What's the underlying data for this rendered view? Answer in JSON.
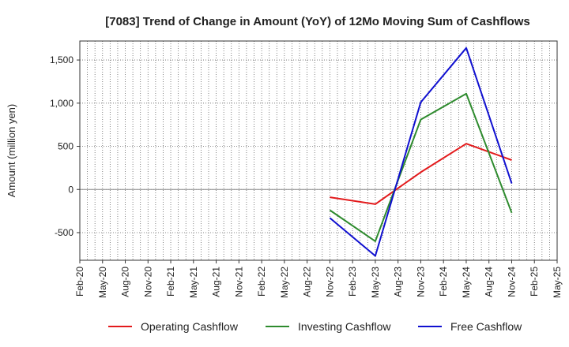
{
  "chart_data": {
    "type": "line",
    "title": "[7083]  Trend of Change in Amount (YoY) of 12Mo Moving Sum of Cashflows",
    "xlabel": "",
    "ylabel": "Amount (million yen)",
    "ylim": [
      -820,
      1720
    ],
    "yticks": [
      -500,
      0,
      500,
      1000,
      1500
    ],
    "ytick_labels": [
      "-500",
      "0",
      "500",
      "1,000",
      "1,500"
    ],
    "categories": [
      "Feb-20",
      "May-20",
      "Aug-20",
      "Nov-20",
      "Feb-21",
      "May-21",
      "Aug-21",
      "Nov-21",
      "Feb-22",
      "May-22",
      "Aug-22",
      "Nov-22",
      "Feb-23",
      "May-23",
      "Aug-23",
      "Nov-23",
      "Feb-24",
      "May-24",
      "Aug-24",
      "Nov-24",
      "Feb-25",
      "May-25"
    ],
    "series": [
      {
        "name": "Operating Cashflow",
        "color": "#e31a1c",
        "values": [
          null,
          null,
          null,
          null,
          null,
          null,
          null,
          null,
          null,
          null,
          null,
          -90,
          null,
          -170,
          null,
          200,
          null,
          530,
          null,
          340,
          null,
          null
        ]
      },
      {
        "name": "Investing Cashflow",
        "color": "#2e8b2e",
        "values": [
          null,
          null,
          null,
          null,
          null,
          null,
          null,
          null,
          null,
          null,
          null,
          -240,
          null,
          -600,
          null,
          810,
          null,
          1110,
          null,
          -270,
          null,
          null
        ]
      },
      {
        "name": "Free Cashflow",
        "color": "#1010d0",
        "values": [
          null,
          null,
          null,
          null,
          null,
          null,
          null,
          null,
          null,
          null,
          null,
          -330,
          null,
          -770,
          null,
          1010,
          null,
          1640,
          null,
          70,
          null,
          null
        ]
      }
    ],
    "grid": true,
    "legend_position": "bottom"
  }
}
